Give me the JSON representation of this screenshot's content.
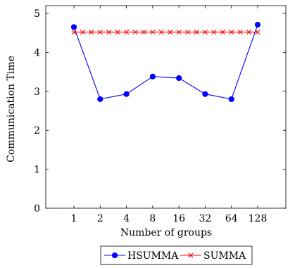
{
  "chart_data": {
    "type": "line",
    "title": "",
    "xlabel": "Number of groups",
    "ylabel": "Communication Time",
    "categories": [
      "1",
      "2",
      "4",
      "8",
      "16",
      "32",
      "64",
      "128"
    ],
    "ylim": [
      0,
      5.2
    ],
    "yticks": [
      "0",
      "1",
      "2",
      "3",
      "4",
      "5"
    ],
    "grid": false,
    "legend_position": "bottom",
    "series": [
      {
        "name": "HSUMMA",
        "color": "#0000ff",
        "marker": "circle",
        "values": [
          4.65,
          2.8,
          2.93,
          3.38,
          3.34,
          2.93,
          2.8,
          4.71
        ]
      },
      {
        "name": "SUMMA",
        "color": "#ff0000",
        "marker": "x",
        "values": [
          4.52,
          4.52,
          4.52,
          4.52,
          4.52,
          4.52,
          4.52,
          4.52
        ]
      }
    ]
  }
}
